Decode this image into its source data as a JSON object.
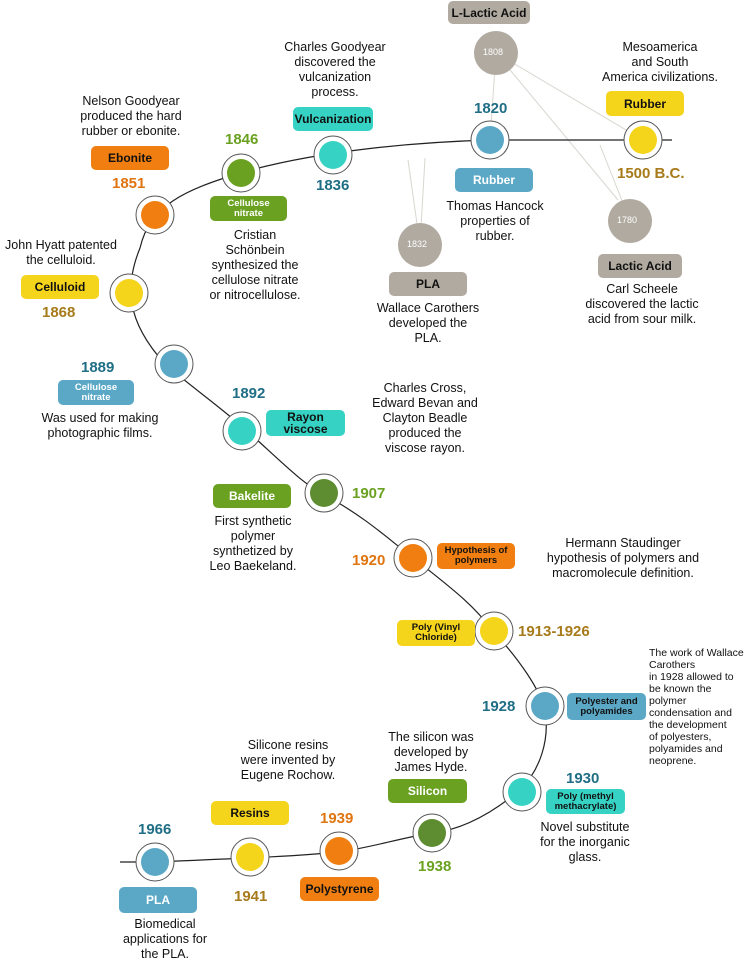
{
  "colors": {
    "gold": "#f5d41c",
    "orange": "#f07e10",
    "green": "#6aa121",
    "olive": "#5e8c31",
    "teal": "#36d3c4",
    "blue": "#5ba8c6",
    "grey": "#b0aaa0",
    "year_green": "#6aa121",
    "year_teal": "#1f6e86",
    "year_orange": "#e07510",
    "year_gold": "#a77a1a"
  },
  "events": {
    "rubber": {
      "label": "Rubber",
      "year": "1500 B.C.",
      "desc": "Mesoamerica\nand South\nAmerica civilizations."
    },
    "rubber1820": {
      "label": "Rubber",
      "year": "1820",
      "desc": "Thomas Hancock\nproperties of\nrubber."
    },
    "vulcanization": {
      "label": "Vulcanization",
      "year": "1836",
      "desc": "Charles Goodyear\ndiscovered the\nvulcanization\nprocess."
    },
    "cellulose1846": {
      "label": "Cellulose nitrate",
      "year": "1846",
      "desc": "Cristian\nSchönbein\nsynthesized the\ncellulose nitrate\nor nitrocellulose."
    },
    "ebonite": {
      "label": "Ebonite",
      "year": "1851",
      "desc": "Nelson Goodyear\nproduced the hard\nrubber or ebonite."
    },
    "celluloid": {
      "label": "Celluloid",
      "year": "1868",
      "desc": "John Hyatt patented\nthe celluloid."
    },
    "cellulose1889": {
      "label": "Cellulose nitrate",
      "year": "1889",
      "desc": "Was used for making\nphotographic films."
    },
    "rayon": {
      "label": "Rayon viscose",
      "year": "1892",
      "desc": "Charles Cross,\nEdward Bevan and\nClayton Beadle\nproduced the\nviscose rayon."
    },
    "bakelite": {
      "label": "Bakelite",
      "year": "1907",
      "desc": "First synthetic\npolymer\nsynthetized by\nLeo Baekeland."
    },
    "hypothesis": {
      "label": "Hypothesis of polymers",
      "year": "1920",
      "desc": "Hermann Staudinger\nhypothesis of polymers and\nmacromolecule definition."
    },
    "pvc": {
      "label": "Poly (Vinyl Chloride)",
      "year": "1913-1926"
    },
    "polyester": {
      "label": "Polyester and polyamides",
      "year": "1928",
      "desc": "The work of Wallace\nCarothers\nin 1928 allowed to\nbe known the\npolymer\ncondensation and\nthe development\nof polyesters,\npolyamides and\nneoprene."
    },
    "pmma": {
      "label": "Poly (methyl methacrylate)",
      "year": "1930",
      "desc": "Novel substitute\nfor the inorganic\nglass."
    },
    "silicon": {
      "label": "Silicon",
      "year": "1938",
      "desc": "The silicon was\ndeveloped by\nJames Hyde."
    },
    "polystyrene": {
      "label": "Polystyrene",
      "year": "1939"
    },
    "resins": {
      "label": "Resins",
      "year": "1941",
      "desc": "Silicone resins\nwere invented by\nEugene Rochow."
    },
    "pla1966": {
      "label": "PLA",
      "year": "1966",
      "desc": "Biomedical\napplications for\nthe PLA."
    }
  },
  "side_events": {
    "llactic": {
      "label": "L-Lactic Acid",
      "year": "1808"
    },
    "lactic": {
      "label": "Lactic Acid",
      "year": "1780",
      "desc": "Carl Scheele\ndiscovered the lactic\nacid from sour milk."
    },
    "pla1832": {
      "label": "PLA",
      "year": "1832",
      "desc": "Wallace Carothers\ndeveloped the\nPLA."
    }
  }
}
